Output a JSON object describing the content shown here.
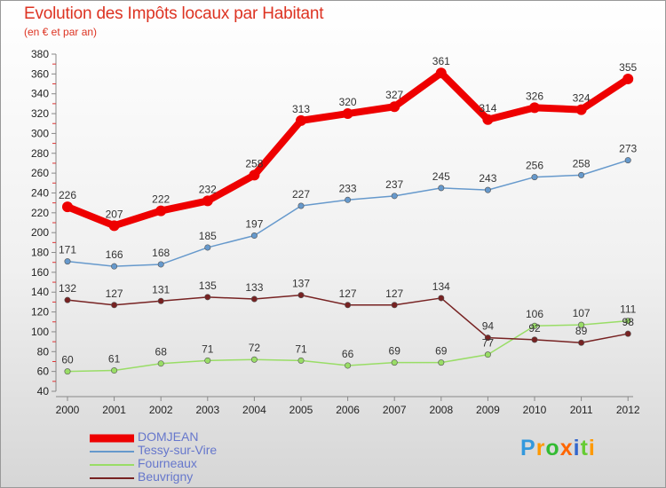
{
  "title": "Evolution des Impôts locaux par Habitant",
  "subtitle": "(en € et par an)",
  "logo": {
    "text": "Proxiti",
    "colors": [
      "#3399dd",
      "#ff9900",
      "#33bb33",
      "#ff6600",
      "#3366cc",
      "#66cc33",
      "#ff9900"
    ]
  },
  "chart_data": {
    "type": "line",
    "x": [
      "2000",
      "2001",
      "2002",
      "2003",
      "2004",
      "2005",
      "2006",
      "2007",
      "2008",
      "2009",
      "2010",
      "2011",
      "2012"
    ],
    "ylim": [
      40,
      380
    ],
    "yticks": [
      "40",
      "60",
      "80",
      "100",
      "120",
      "140",
      "160",
      "180",
      "200",
      "220",
      "240",
      "260",
      "280",
      "300",
      "320",
      "340",
      "360",
      "380"
    ],
    "grid": false,
    "legend": "bottom-left",
    "series": [
      {
        "name": "DOMJEAN",
        "color": "#ee0000",
        "values": [
          226,
          207,
          222,
          232,
          258,
          313,
          320,
          327,
          361,
          314,
          326,
          324,
          355
        ]
      },
      {
        "name": "Tessy-sur-Vire",
        "color": "#6699cc",
        "values": [
          171,
          166,
          168,
          185,
          197,
          227,
          233,
          237,
          245,
          243,
          256,
          258,
          273
        ]
      },
      {
        "name": "Fourneaux",
        "color": "#99dd66",
        "values": [
          60,
          61,
          68,
          71,
          72,
          71,
          66,
          69,
          69,
          77,
          106,
          107,
          111
        ]
      },
      {
        "name": "Beuvrigny",
        "color": "#772222",
        "values": [
          132,
          127,
          131,
          135,
          133,
          137,
          127,
          127,
          134,
          94,
          92,
          89,
          98
        ]
      }
    ]
  }
}
